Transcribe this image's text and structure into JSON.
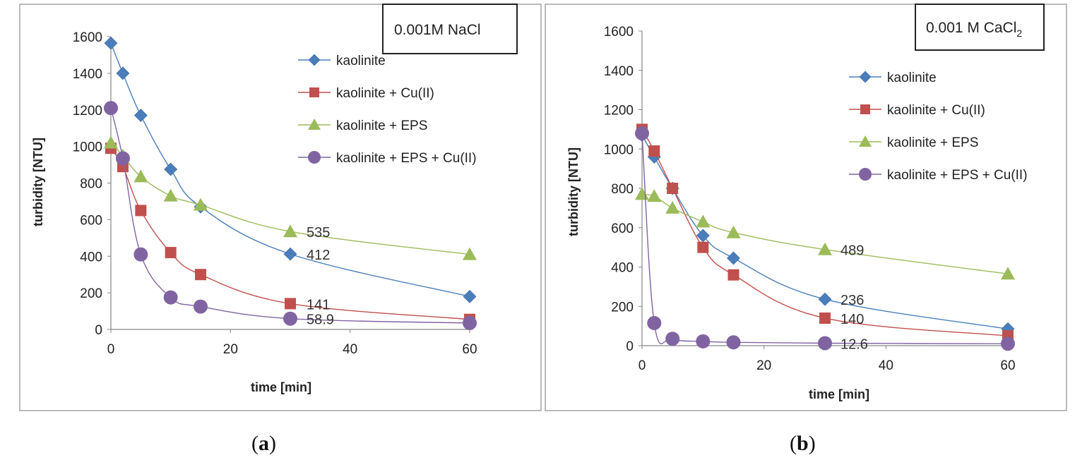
{
  "chart_data": [
    {
      "type": "line",
      "label_box": "0.001M NaCl",
      "caption_letter": "a",
      "xlabel": "time [min]",
      "ylabel": "turbidity [NTU]",
      "xlim": [
        0,
        60
      ],
      "ylim": [
        0,
        1600
      ],
      "xticks": [
        0,
        20,
        40,
        60
      ],
      "yticks": [
        0,
        200,
        400,
        600,
        800,
        1000,
        1200,
        1400,
        1600
      ],
      "grid": false,
      "legend_position": "top-right",
      "series": [
        {
          "name": "kaolinite",
          "marker": "diamond",
          "color": "#4a7ebb",
          "x": [
            0,
            2,
            5,
            10,
            15,
            30,
            60
          ],
          "y": [
            1565,
            1400,
            1170,
            875,
            670,
            412,
            180
          ]
        },
        {
          "name": "kaolinite + Cu(II)",
          "marker": "square",
          "color": "#c0504d",
          "x": [
            0,
            2,
            5,
            10,
            15,
            30,
            60
          ],
          "y": [
            990,
            890,
            650,
            420,
            300,
            141,
            55
          ]
        },
        {
          "name": "kaolinite + EPS",
          "marker": "triangle",
          "color": "#9bbb59",
          "x": [
            0,
            2,
            5,
            10,
            15,
            30,
            60
          ],
          "y": [
            1020,
            950,
            835,
            730,
            680,
            535,
            410
          ]
        },
        {
          "name": "kaolinite + EPS + Cu(II)",
          "marker": "circle",
          "color": "#8064a2",
          "x": [
            0,
            2,
            5,
            10,
            15,
            30,
            60
          ],
          "y": [
            1210,
            935,
            410,
            175,
            125,
            58.9,
            35
          ]
        }
      ],
      "annotations": [
        {
          "text": "535",
          "x": 30,
          "y": 535
        },
        {
          "text": "412",
          "x": 30,
          "y": 412
        },
        {
          "text": "141",
          "x": 30,
          "y": 141
        },
        {
          "text": "58.9",
          "x": 30,
          "y": 58.9
        }
      ]
    },
    {
      "type": "line",
      "label_box_main": "0.001 M CaCl",
      "label_box_sub": "2",
      "caption_letter": "b",
      "xlabel": "time [min]",
      "ylabel": "turbidity [NTU]",
      "xlim": [
        0,
        60
      ],
      "ylim": [
        0,
        1600
      ],
      "xticks": [
        0,
        20,
        40,
        60
      ],
      "yticks": [
        0,
        200,
        400,
        600,
        800,
        1000,
        1200,
        1400,
        1600
      ],
      "grid": false,
      "legend_position": "top-right",
      "series": [
        {
          "name": "kaolinite",
          "marker": "diamond",
          "color": "#4a7ebb",
          "x": [
            0,
            2,
            5,
            10,
            15,
            30,
            60
          ],
          "y": [
            1070,
            960,
            800,
            560,
            445,
            236,
            85
          ]
        },
        {
          "name": "kaolinite + Cu(II)",
          "marker": "square",
          "color": "#c0504d",
          "x": [
            0,
            2,
            5,
            10,
            15,
            30,
            60
          ],
          "y": [
            1100,
            990,
            800,
            500,
            360,
            140,
            50
          ]
        },
        {
          "name": "kaolinite + EPS",
          "marker": "triangle",
          "color": "#9bbb59",
          "x": [
            0,
            2,
            5,
            10,
            15,
            30,
            60
          ],
          "y": [
            770,
            760,
            700,
            630,
            575,
            489,
            365
          ]
        },
        {
          "name": "kaolinite + EPS + Cu(II)",
          "marker": "circle",
          "color": "#8064a2",
          "x": [
            0,
            2,
            5,
            10,
            15,
            30,
            60
          ],
          "y": [
            1080,
            115,
            35,
            22,
            17,
            12.6,
            10
          ]
        }
      ],
      "annotations": [
        {
          "text": "489",
          "x": 30,
          "y": 489
        },
        {
          "text": "236",
          "x": 30,
          "y": 236
        },
        {
          "text": "140",
          "x": 30,
          "y": 140
        },
        {
          "text": "12.6",
          "x": 30,
          "y": 12.6
        }
      ]
    }
  ]
}
